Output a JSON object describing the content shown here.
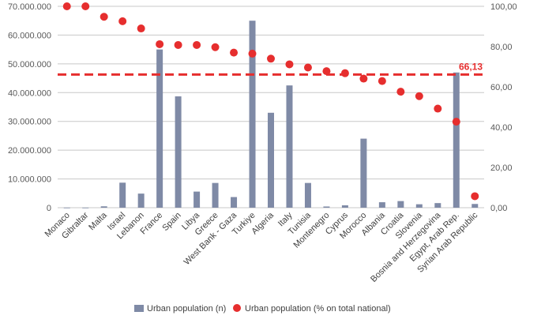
{
  "chart_data": {
    "type": "bar",
    "categories": [
      "Monaco",
      "Gibraltar",
      "Malta",
      "Israel",
      "Lebanon",
      "France",
      "Spain",
      "Libya",
      "Greece",
      "West Bank - Gaza",
      "Turkiye",
      "Algeria",
      "Italy",
      "Tunisia",
      "Montenegro",
      "Cyprus",
      "Morocco",
      "Albania",
      "Croatia",
      "Slovenia",
      "Bosnia and Herzegovina",
      "Egypt, Arab Rep.",
      "Syrian Arab Republic"
    ],
    "series": [
      {
        "name": "Urban population (n)",
        "type": "bar",
        "axis": "left",
        "color": "#7f8aa6",
        "values": [
          38000,
          34000,
          480000,
          8700000,
          4900000,
          55000000,
          38700000,
          5600000,
          8600000,
          3700000,
          65000000,
          33000000,
          42500000,
          8600000,
          420000,
          830000,
          24000000,
          1900000,
          2300000,
          1200000,
          1600000,
          47000000,
          1300000
        ]
      },
      {
        "name": "Urban population (% on total national)",
        "type": "scatter",
        "axis": "right",
        "color": "#e62e2e",
        "values": [
          100,
          100,
          94.8,
          92.6,
          89.0,
          81.2,
          80.8,
          80.8,
          79.7,
          77.0,
          76.5,
          74.0,
          71.2,
          69.6,
          67.8,
          66.8,
          64.1,
          62.9,
          57.6,
          55.4,
          49.2,
          42.7,
          5.7
        ]
      }
    ],
    "reference_line": {
      "value": 66.13,
      "label": "66,13",
      "axis": "right",
      "color": "#e62e2e"
    },
    "y_left": {
      "ticks": [
        "0",
        "10.000.000",
        "20.000.000",
        "30.000.000",
        "40.000.000",
        "50.000.000",
        "60.000.000",
        "70.000.000"
      ],
      "lim": [
        0,
        70000000
      ]
    },
    "y_right": {
      "ticks": [
        "0,00",
        "20,00",
        "40,00",
        "60,00",
        "80,00",
        "100,00"
      ],
      "lim": [
        0,
        100
      ]
    },
    "grid": true,
    "legend_position": "bottom",
    "colors": {
      "bar": "#7f8aa6",
      "dot": "#e62e2e",
      "grid": "#c8c8c8",
      "axis_text": "#595959"
    },
    "title": "",
    "xlabel": "",
    "ylabel": ""
  }
}
